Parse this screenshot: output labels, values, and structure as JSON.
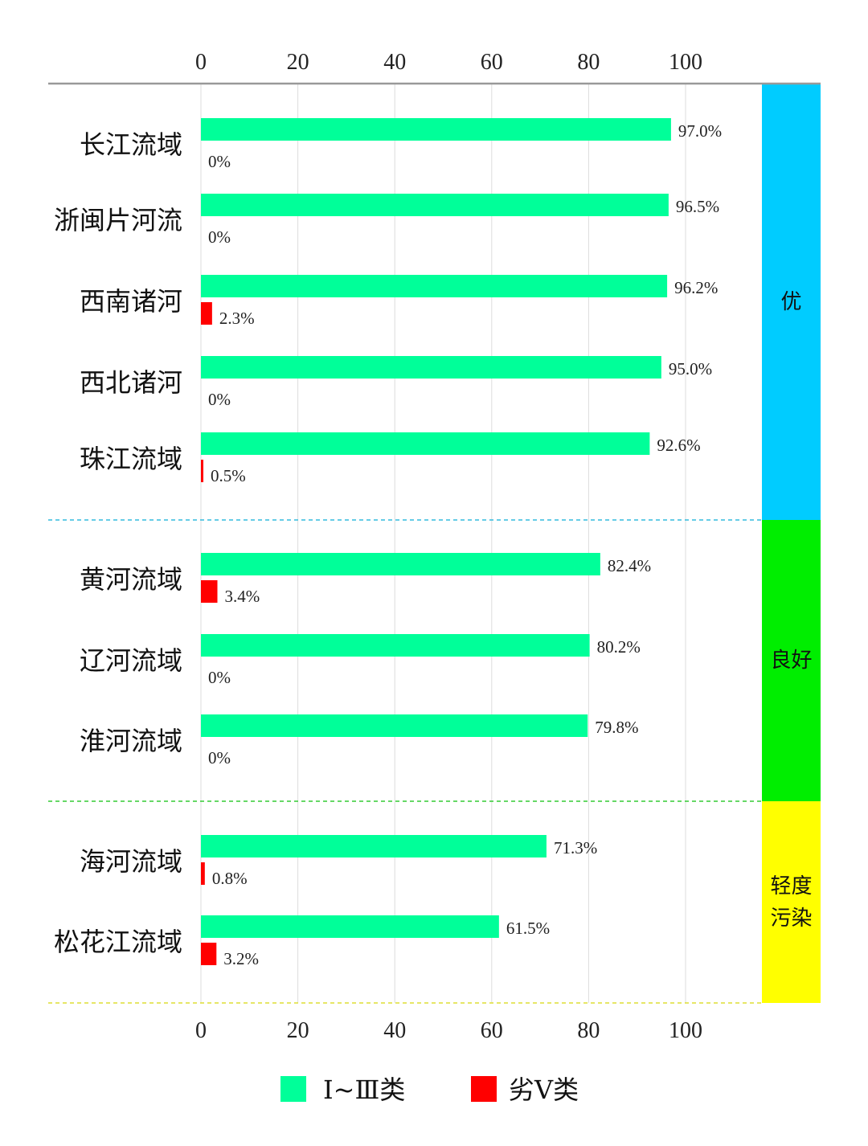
{
  "chart_data": {
    "type": "bar",
    "orientation": "horizontal",
    "xlim": [
      0,
      100
    ],
    "xticks": [
      0,
      20,
      40,
      60,
      80,
      100
    ],
    "grid": true,
    "legend_position": "bottom",
    "categories": [
      "长江流域",
      "浙闽片河流",
      "西南诸河",
      "西北诸河",
      "珠江流域",
      "黄河流域",
      "辽河流域",
      "淮河流域",
      "海河流域",
      "松花江流域"
    ],
    "series": [
      {
        "name": "Ⅰ~Ⅲ类",
        "color": "#00FF99",
        "values": [
          97.0,
          96.5,
          96.2,
          95.0,
          92.6,
          82.4,
          80.2,
          79.8,
          71.3,
          61.5
        ],
        "labels": [
          "97.0%",
          "96.5%",
          "96.2%",
          "95.0%",
          "92.6%",
          "82.4%",
          "80.2%",
          "79.8%",
          "71.3%",
          "61.5%"
        ]
      },
      {
        "name": "劣Ⅴ类",
        "color": "#FF0000",
        "values": [
          0,
          0,
          2.3,
          0,
          0.5,
          3.4,
          0,
          0,
          0.8,
          3.2
        ],
        "labels": [
          "0%",
          "0%",
          "2.3%",
          "0%",
          "0.5%",
          "3.4%",
          "0%",
          "0%",
          "0.8%",
          "3.2%"
        ]
      }
    ],
    "groups": [
      {
        "label": "优",
        "color": "#00CCFF",
        "line_color": "#33BBDD",
        "count": 5
      },
      {
        "label": "良好",
        "color": "#00EE00",
        "line_color": "#33CC33",
        "count": 3
      },
      {
        "label": "轻度污染",
        "label_lines": [
          "轻度",
          "污染"
        ],
        "color": "#FFFF00",
        "line_color": "#DDDD33",
        "count": 2
      }
    ]
  }
}
